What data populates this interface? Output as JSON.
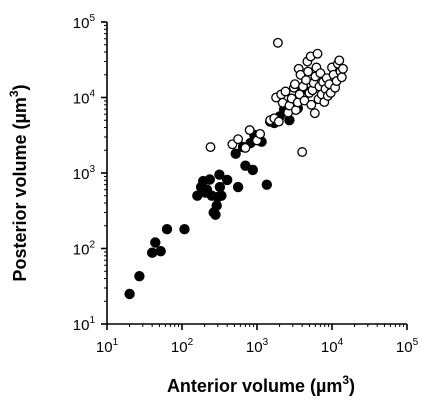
{
  "chart_data": {
    "type": "scatter",
    "title": "",
    "x_axis": {
      "scale": "log",
      "range": [
        10,
        100000
      ],
      "ticks": [
        10,
        100,
        1000,
        10000,
        100000
      ],
      "tick_labels": [
        {
          "base": "10",
          "exp": "1"
        },
        {
          "base": "10",
          "exp": "2"
        },
        {
          "base": "10",
          "exp": "3"
        },
        {
          "base": "10",
          "exp": "4"
        },
        {
          "base": "10",
          "exp": "5"
        }
      ],
      "label": {
        "prefix": "Anterior volume (",
        "unit": "µm",
        "exp": "3",
        "suffix": ")"
      }
    },
    "y_axis": {
      "scale": "log",
      "range": [
        10,
        100000
      ],
      "ticks": [
        10,
        100,
        1000,
        10000,
        100000
      ],
      "tick_labels": [
        {
          "base": "10",
          "exp": "1"
        },
        {
          "base": "10",
          "exp": "2"
        },
        {
          "base": "10",
          "exp": "3"
        },
        {
          "base": "10",
          "exp": "4"
        },
        {
          "base": "10",
          "exp": "5"
        }
      ],
      "label": {
        "prefix": "Posterior volume (",
        "unit": "µm",
        "exp": "3",
        "suffix": ")"
      }
    },
    "grid": false,
    "legend": "none",
    "series": [
      {
        "marker": "filled-circle",
        "color": "#000000",
        "points": [
          [
            20,
            25
          ],
          [
            27,
            43
          ],
          [
            40,
            88
          ],
          [
            44,
            120
          ],
          [
            52,
            92
          ],
          [
            63,
            180
          ],
          [
            108,
            180
          ],
          [
            160,
            500
          ],
          [
            180,
            650
          ],
          [
            192,
            780
          ],
          [
            205,
            550
          ],
          [
            215,
            600
          ],
          [
            235,
            820
          ],
          [
            250,
            500
          ],
          [
            265,
            300
          ],
          [
            280,
            280
          ],
          [
            290,
            370
          ],
          [
            300,
            480
          ],
          [
            320,
            650
          ],
          [
            335,
            500
          ],
          [
            315,
            950
          ],
          [
            400,
            810
          ],
          [
            520,
            1800
          ],
          [
            560,
            650
          ],
          [
            650,
            2200
          ],
          [
            700,
            1250
          ],
          [
            820,
            2500
          ],
          [
            880,
            1100
          ],
          [
            920,
            3200
          ],
          [
            1150,
            2600
          ],
          [
            1350,
            700
          ],
          [
            1500,
            4800
          ],
          [
            1700,
            4600
          ],
          [
            2000,
            5600
          ],
          [
            2300,
            7000
          ],
          [
            2700,
            5000
          ],
          [
            3000,
            9000
          ],
          [
            3500,
            7200
          ],
          [
            4200,
            13000
          ]
        ]
      },
      {
        "marker": "open-circle",
        "color": "#000000",
        "points": [
          [
            240,
            2200
          ],
          [
            470,
            2400
          ],
          [
            560,
            2800
          ],
          [
            700,
            2150
          ],
          [
            800,
            3700
          ],
          [
            1000,
            2700
          ],
          [
            1100,
            3300
          ],
          [
            1500,
            5000
          ],
          [
            1700,
            5300
          ],
          [
            1950,
            4800
          ],
          [
            1900,
            53000
          ],
          [
            1800,
            10000
          ],
          [
            2100,
            11000
          ],
          [
            2200,
            8500
          ],
          [
            2400,
            12000
          ],
          [
            2600,
            6300
          ],
          [
            2700,
            7800
          ],
          [
            2900,
            9700
          ],
          [
            3100,
            13500
          ],
          [
            3200,
            15000
          ],
          [
            3300,
            6800
          ],
          [
            3500,
            8600
          ],
          [
            3600,
            24000
          ],
          [
            3700,
            11000
          ],
          [
            3800,
            20000
          ],
          [
            4000,
            1900
          ],
          [
            4100,
            14000
          ],
          [
            4300,
            9100
          ],
          [
            4500,
            17000
          ],
          [
            4700,
            30000
          ],
          [
            4800,
            22000
          ],
          [
            5000,
            11500
          ],
          [
            5200,
            35000
          ],
          [
            5300,
            8000
          ],
          [
            5500,
            12500
          ],
          [
            5700,
            15500
          ],
          [
            5900,
            6200
          ],
          [
            6000,
            19000
          ],
          [
            6200,
            25000
          ],
          [
            6400,
            38000
          ],
          [
            6600,
            9500
          ],
          [
            6800,
            14000
          ],
          [
            7000,
            21000
          ],
          [
            7300,
            11000
          ],
          [
            7600,
            16000
          ],
          [
            7900,
            8700
          ],
          [
            8200,
            13000
          ],
          [
            8500,
            18000
          ],
          [
            8800,
            10500
          ],
          [
            9200,
            15000
          ],
          [
            9600,
            11500
          ],
          [
            10000,
            25000
          ],
          [
            10500,
            20000
          ],
          [
            11000,
            13500
          ],
          [
            11500,
            16500
          ],
          [
            12000,
            28000
          ],
          [
            12500,
            31000
          ],
          [
            13000,
            22000
          ],
          [
            13500,
            18500
          ],
          [
            14000,
            24000
          ]
        ]
      }
    ]
  }
}
